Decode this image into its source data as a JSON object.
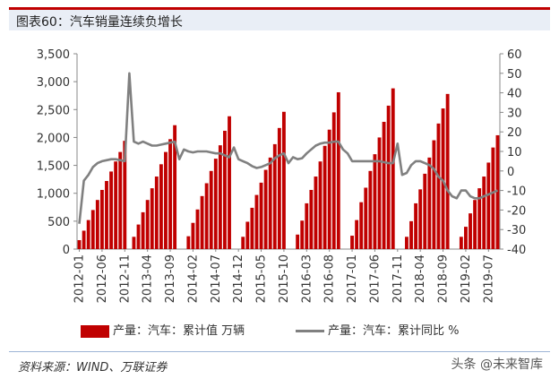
{
  "figure": {
    "title": "图表60：汽车销量连续负增长",
    "source": "资料来源：WIND、万联证券",
    "watermark": "头条 @未来智库"
  },
  "colors": {
    "bar": "#c00000",
    "line": "#808080",
    "title_bg": "#e9eef6"
  },
  "chart_data": {
    "type": "bar",
    "title": "",
    "xlabel": "",
    "ylabel": "",
    "ylim": [
      0,
      3500
    ],
    "y2lim": [
      -40,
      60
    ],
    "yticks": [
      "0",
      "500",
      "1,000",
      "1,500",
      "2,000",
      "2,500",
      "3,000",
      "3,500"
    ],
    "y2ticks": [
      "-40",
      "-30",
      "-20",
      "-10",
      "0",
      "10",
      "20",
      "30",
      "40",
      "50",
      "60"
    ],
    "xtick_labels": [
      "2012-01",
      "2012-06",
      "2012-11",
      "2013-04",
      "2013-09",
      "2014-02",
      "2014-07",
      "2014-12",
      "2015-05",
      "2015-10",
      "2016-03",
      "2016-08",
      "2017-01",
      "2017-06",
      "2017-11",
      "2018-04",
      "2018-09",
      "2019-02",
      "2019-07"
    ],
    "legend_position": "bottom",
    "series": [
      {
        "name": "产量：汽车：累计值 万辆",
        "type": "bar",
        "axis": "left",
        "values": [
          160,
          330,
          520,
          700,
          880,
          1060,
          1220,
          1390,
          1570,
          1740,
          1940,
          0,
          220,
          440,
          660,
          880,
          1090,
          1300,
          1520,
          1740,
          1970,
          2220,
          0,
          0,
          230,
          470,
          710,
          950,
          1180,
          1400,
          1620,
          1860,
          2120,
          2380,
          0,
          0,
          220,
          490,
          740,
          970,
          1190,
          1420,
          1640,
          1880,
          2170,
          2460,
          0,
          0,
          260,
          510,
          820,
          1060,
          1300,
          1570,
          1850,
          2140,
          2450,
          2810,
          0,
          0,
          240,
          520,
          840,
          1100,
          1400,
          1700,
          2000,
          2280,
          2570,
          2880,
          0,
          0,
          220,
          500,
          820,
          1070,
          1350,
          1640,
          1950,
          2250,
          2520,
          2780,
          0,
          0,
          220,
          400,
          640,
          880,
          1090,
          1300,
          1550,
          1820,
          2040
        ]
      },
      {
        "name": "产量：汽车：累计同比 %",
        "type": "line",
        "axis": "right",
        "values": [
          -27,
          -5,
          -2,
          2,
          4,
          5,
          5.5,
          6,
          6,
          5.5,
          5,
          50,
          15,
          14,
          15,
          14,
          13,
          13,
          13.5,
          14,
          14.5,
          15,
          6,
          11,
          10,
          9.5,
          10,
          10,
          10,
          9.5,
          9,
          9,
          8,
          7,
          12,
          6,
          5,
          4,
          2.5,
          1.5,
          2,
          3,
          4,
          6.5,
          8,
          9,
          4,
          7,
          6,
          6.5,
          9,
          11,
          13,
          14,
          14.5,
          14.5,
          15,
          15,
          11,
          9,
          5,
          5,
          5,
          5,
          5,
          5,
          5,
          4.5,
          4,
          4,
          14,
          -2,
          -1,
          3,
          5,
          5,
          4,
          3,
          1,
          -3,
          -5,
          -10,
          -13,
          -14,
          -10,
          -10,
          -13,
          -14,
          -14,
          -13,
          -12,
          -11,
          -10
        ]
      }
    ]
  }
}
